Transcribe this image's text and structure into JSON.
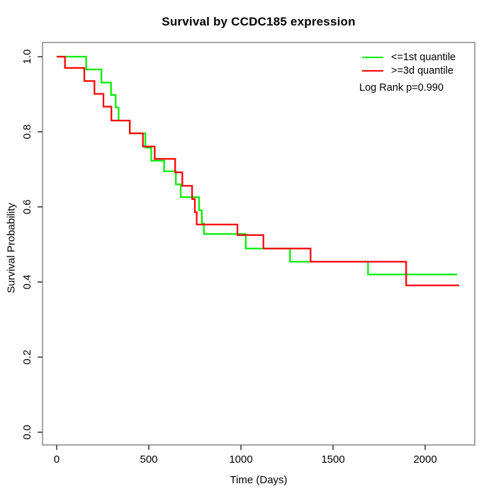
{
  "header": {
    "title": "Survival by CCDC185 expression"
  },
  "chart_data": {
    "type": "line",
    "subtype": "kaplan-meier-step",
    "title": "Survival by CCDC185 expression",
    "xlabel": "Time (Days)",
    "ylabel": "Survival Probability",
    "xlim": [
      0,
      2200
    ],
    "ylim": [
      0.0,
      1.0
    ],
    "x_ticks": [
      "0",
      "500",
      "1000",
      "1500",
      "2000"
    ],
    "y_ticks": [
      "0.0",
      "0.2",
      "0.4",
      "0.6",
      "0.8",
      "1.0"
    ],
    "grid": false,
    "legend_position": "top-right-inside",
    "annotation": "Log Rank p=0.990",
    "frame_color": "#888888",
    "tick_color": "#333333",
    "series": [
      {
        "name": "<=1st quantile",
        "color": "#00ee00",
        "end_time": 2173,
        "points": [
          [
            0,
            1.0
          ],
          [
            160,
            0.966
          ],
          [
            243,
            0.931
          ],
          [
            295,
            0.898
          ],
          [
            320,
            0.865
          ],
          [
            336,
            0.83
          ],
          [
            397,
            0.796
          ],
          [
            481,
            0.758
          ],
          [
            513,
            0.723
          ],
          [
            583,
            0.695
          ],
          [
            647,
            0.66
          ],
          [
            673,
            0.626
          ],
          [
            773,
            0.591
          ],
          [
            788,
            0.556
          ],
          [
            799,
            0.528
          ],
          [
            1026,
            0.489
          ],
          [
            1267,
            0.454
          ],
          [
            1690,
            0.42
          ]
        ]
      },
      {
        "name": ">=3d quantile",
        "color": "#ff0000",
        "end_time": 2185,
        "points": [
          [
            0,
            1.0
          ],
          [
            45,
            0.97
          ],
          [
            150,
            0.935
          ],
          [
            205,
            0.901
          ],
          [
            254,
            0.867
          ],
          [
            297,
            0.83
          ],
          [
            397,
            0.796
          ],
          [
            468,
            0.761
          ],
          [
            532,
            0.728
          ],
          [
            643,
            0.692
          ],
          [
            682,
            0.656
          ],
          [
            735,
            0.621
          ],
          [
            750,
            0.586
          ],
          [
            760,
            0.553
          ],
          [
            981,
            0.525
          ],
          [
            1122,
            0.489
          ],
          [
            1378,
            0.454
          ],
          [
            1897,
            0.391
          ]
        ]
      }
    ]
  }
}
